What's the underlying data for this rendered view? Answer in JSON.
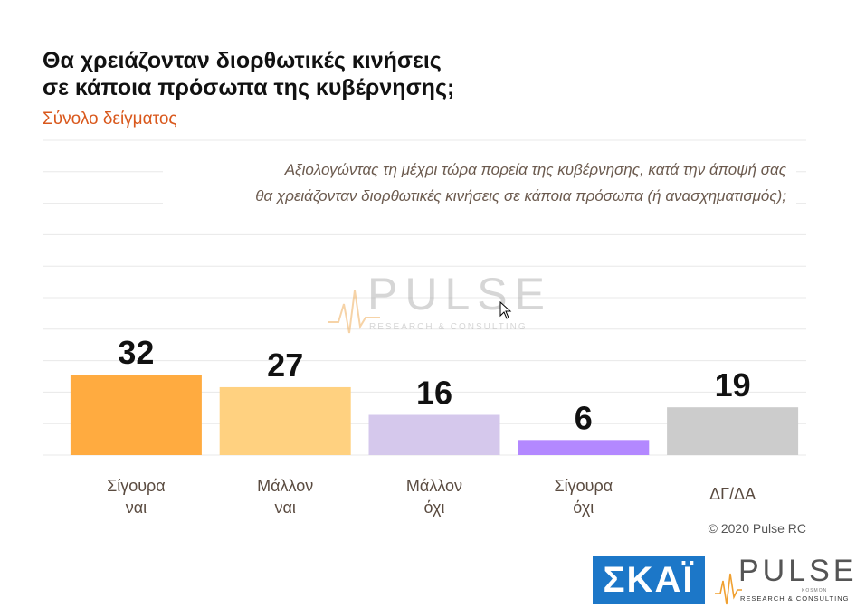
{
  "title": {
    "line1": "Θα χρειάζονταν διορθωτικές κινήσεις",
    "line2": "σε κάποια πρόσωπα της κυβέρνησης;"
  },
  "subtitle": "Σύνολο δείγματος",
  "question": {
    "line1": "Αξιολογώντας τη μέχρι τώρα πορεία της κυβέρνησης, κατά την άποψή σας",
    "line2": "θα χρειάζονταν διορθωτικές κινήσεις σε κάποια πρόσωπα (ή ανασχηματισμός);"
  },
  "chart_data": {
    "type": "bar",
    "categories": [
      [
        "Σίγουρα",
        "ναι"
      ],
      [
        "Μάλλον",
        "ναι"
      ],
      [
        "Μάλλον",
        "όχι"
      ],
      [
        "Σίγουρα",
        "όχι"
      ],
      [
        "ΔΓ/ΔΑ"
      ]
    ],
    "values": [
      32,
      27,
      16,
      6,
      19
    ],
    "colors": [
      "#ffab40",
      "#ffd180",
      "#d5c8ec",
      "#b388ff",
      "#cccccc"
    ],
    "ylim": [
      0,
      100
    ],
    "grid": true,
    "data_labels": true
  },
  "watermark": {
    "word": "PULSE",
    "tag": "RESEARCH & CONSULTING"
  },
  "copyright": "© 2020 Pulse RC",
  "logos": {
    "skai": "ΣΚΑΪ",
    "pulse_word": "PULSE",
    "pulse_tag": "RESEARCH & CONSULTING",
    "pulse_sub": "KOSMON"
  },
  "icons": {
    "cursor": "mouse-pointer-icon"
  }
}
